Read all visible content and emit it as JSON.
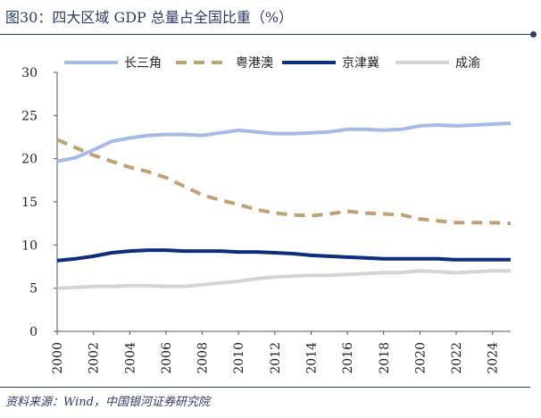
{
  "title": "图30：四大区域 GDP 总量占全国比重（%）",
  "source": "资料来源：Wind，中国银河证券研究院",
  "chart_data": {
    "type": "line",
    "title": "图30：四大区域 GDP 总量占全国比重（%）",
    "xlabel": "",
    "ylabel": "",
    "x": [
      2000,
      2001,
      2002,
      2003,
      2004,
      2005,
      2006,
      2007,
      2008,
      2009,
      2010,
      2011,
      2012,
      2013,
      2014,
      2015,
      2016,
      2017,
      2018,
      2019,
      2020,
      2021,
      2022,
      2023,
      2024,
      2025
    ],
    "xticks": [
      "2000",
      "2002",
      "2004",
      "2006",
      "2008",
      "2010",
      "2012",
      "2014",
      "2016",
      "2018",
      "2020",
      "2022",
      "2024"
    ],
    "xlim": [
      2000,
      2025
    ],
    "ylim": [
      0,
      30
    ],
    "yticks": [
      0,
      5,
      10,
      15,
      20,
      25,
      30
    ],
    "grid": false,
    "legend_position": "top",
    "series": [
      {
        "name": "长三角",
        "color": "#a6bae6",
        "style": "solid",
        "values": [
          19.7,
          20.1,
          21.0,
          22.0,
          22.4,
          22.7,
          22.8,
          22.8,
          22.7,
          23.0,
          23.3,
          23.1,
          22.9,
          22.9,
          23.0,
          23.1,
          23.4,
          23.4,
          23.3,
          23.4,
          23.8,
          23.9,
          23.8,
          23.9,
          24.0,
          24.1
        ]
      },
      {
        "name": "粤港澳",
        "color": "#bfa172",
        "style": "dashed",
        "values": [
          22.2,
          21.3,
          20.4,
          19.7,
          19.0,
          18.5,
          17.8,
          16.8,
          15.8,
          15.2,
          14.7,
          14.1,
          13.7,
          13.5,
          13.4,
          13.6,
          13.9,
          13.7,
          13.6,
          13.5,
          13.0,
          12.8,
          12.6,
          12.6,
          12.6,
          12.5
        ]
      },
      {
        "name": "京津冀",
        "color": "#0d2e7e",
        "style": "solid",
        "values": [
          8.2,
          8.4,
          8.7,
          9.1,
          9.3,
          9.4,
          9.4,
          9.3,
          9.3,
          9.3,
          9.2,
          9.2,
          9.1,
          9.0,
          8.8,
          8.7,
          8.6,
          8.5,
          8.4,
          8.4,
          8.4,
          8.4,
          8.3,
          8.3,
          8.3,
          8.3
        ]
      },
      {
        "name": "成渝",
        "color": "#d4d4d4",
        "style": "solid",
        "values": [
          5.0,
          5.1,
          5.2,
          5.2,
          5.3,
          5.3,
          5.2,
          5.2,
          5.4,
          5.6,
          5.8,
          6.1,
          6.3,
          6.4,
          6.5,
          6.5,
          6.6,
          6.7,
          6.8,
          6.8,
          7.0,
          6.9,
          6.8,
          6.9,
          7.0,
          7.0
        ]
      }
    ]
  }
}
